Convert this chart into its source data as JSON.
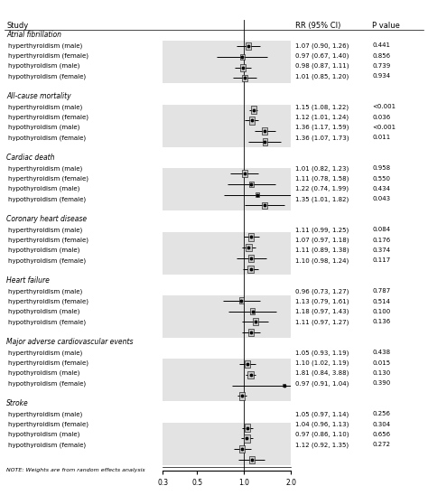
{
  "groups": [
    {
      "label": "Atrial fibrillation",
      "studies": [
        {
          "name": "hyperthyroidism (male)",
          "rr": 1.07,
          "lo": 0.9,
          "hi": 1.26,
          "rr_str": "1.07 (0.90, 1.26)",
          "p": "0.441"
        },
        {
          "name": "hyperthyroidism (female)",
          "rr": 0.97,
          "lo": 0.67,
          "hi": 1.4,
          "rr_str": "0.97 (0.67, 1.40)",
          "p": "0.856"
        },
        {
          "name": "hypothyroidism (male)",
          "rr": 0.98,
          "lo": 0.87,
          "hi": 1.11,
          "rr_str": "0.98 (0.87, 1.11)",
          "p": "0.739"
        },
        {
          "name": "hypothyroidism (female)",
          "rr": 1.01,
          "lo": 0.85,
          "hi": 1.2,
          "rr_str": "1.01 (0.85, 1.20)",
          "p": "0.934"
        }
      ]
    },
    {
      "label": "All-cause mortality",
      "studies": [
        {
          "name": "hyperthyroidism (male)",
          "rr": 1.15,
          "lo": 1.08,
          "hi": 1.22,
          "rr_str": "1.15 (1.08, 1.22)",
          "p": "<0.001"
        },
        {
          "name": "hyperthyroidism (female)",
          "rr": 1.12,
          "lo": 1.01,
          "hi": 1.24,
          "rr_str": "1.12 (1.01, 1.24)",
          "p": "0.036"
        },
        {
          "name": "hypothyroidism (male)",
          "rr": 1.36,
          "lo": 1.17,
          "hi": 1.59,
          "rr_str": "1.36 (1.17, 1.59)",
          "p": "<0.001"
        },
        {
          "name": "hypothyroidism (female)",
          "rr": 1.36,
          "lo": 1.07,
          "hi": 1.73,
          "rr_str": "1.36 (1.07, 1.73)",
          "p": "0.011"
        }
      ]
    },
    {
      "label": "Cardiac death",
      "studies": [
        {
          "name": "hyperthyroidism (male)",
          "rr": 1.01,
          "lo": 0.82,
          "hi": 1.23,
          "rr_str": "1.01 (0.82, 1.23)",
          "p": "0.958"
        },
        {
          "name": "hyperthyroidism (female)",
          "rr": 1.11,
          "lo": 0.78,
          "hi": 1.58,
          "rr_str": "1.11 (0.78, 1.58)",
          "p": "0.550"
        },
        {
          "name": "hypothyroidism (male)",
          "rr": 1.22,
          "lo": 0.74,
          "hi": 1.99,
          "rr_str": "1.22 (0.74, 1.99)",
          "p": "0.434"
        },
        {
          "name": "hypothyroidism (female)",
          "rr": 1.35,
          "lo": 1.01,
          "hi": 1.82,
          "rr_str": "1.35 (1.01, 1.82)",
          "p": "0.043"
        }
      ]
    },
    {
      "label": "Coronary heart disease",
      "studies": [
        {
          "name": "hyperthyroidism (male)",
          "rr": 1.11,
          "lo": 0.99,
          "hi": 1.25,
          "rr_str": "1.11 (0.99, 1.25)",
          "p": "0.084"
        },
        {
          "name": "hyperthyroidism (female)",
          "rr": 1.07,
          "lo": 0.97,
          "hi": 1.18,
          "rr_str": "1.07 (0.97, 1.18)",
          "p": "0.176"
        },
        {
          "name": "hypothyroidism (male)",
          "rr": 1.11,
          "lo": 0.89,
          "hi": 1.38,
          "rr_str": "1.11 (0.89, 1.38)",
          "p": "0.374"
        },
        {
          "name": "hypothyroidism (female)",
          "rr": 1.1,
          "lo": 0.98,
          "hi": 1.24,
          "rr_str": "1.10 (0.98, 1.24)",
          "p": "0.117"
        }
      ]
    },
    {
      "label": "Heart failure",
      "studies": [
        {
          "name": "hyperthyroidism (male)",
          "rr": 0.96,
          "lo": 0.73,
          "hi": 1.27,
          "rr_str": "0.96 (0.73, 1.27)",
          "p": "0.787"
        },
        {
          "name": "hyperthyroidism (female)",
          "rr": 1.13,
          "lo": 0.79,
          "hi": 1.61,
          "rr_str": "1.13 (0.79, 1.61)",
          "p": "0.514"
        },
        {
          "name": "hypothyroidism (male)",
          "rr": 1.18,
          "lo": 0.97,
          "hi": 1.43,
          "rr_str": "1.18 (0.97, 1.43)",
          "p": "0.100"
        },
        {
          "name": "hypothyroidism (female)",
          "rr": 1.11,
          "lo": 0.97,
          "hi": 1.27,
          "rr_str": "1.11 (0.97, 1.27)",
          "p": "0.136"
        }
      ]
    },
    {
      "label": "Major adverse cardiovascular events",
      "studies": [
        {
          "name": "hyperthyroidism (male)",
          "rr": 1.05,
          "lo": 0.93,
          "hi": 1.19,
          "rr_str": "1.05 (0.93, 1.19)",
          "p": "0.438"
        },
        {
          "name": "hyperthyroidism (female)",
          "rr": 1.1,
          "lo": 1.02,
          "hi": 1.19,
          "rr_str": "1.10 (1.02, 1.19)",
          "p": "0.015"
        },
        {
          "name": "hypothyroidism (male)",
          "rr": 1.81,
          "lo": 0.84,
          "hi": 3.88,
          "rr_str": "1.81 (0.84, 3.88)",
          "p": "0.130",
          "arrow": true
        },
        {
          "name": "hypothyroidism (female)",
          "rr": 0.97,
          "lo": 0.91,
          "hi": 1.04,
          "rr_str": "0.97 (0.91, 1.04)",
          "p": "0.390"
        }
      ]
    },
    {
      "label": "Stroke",
      "studies": [
        {
          "name": "hyperthyroidism (male)",
          "rr": 1.05,
          "lo": 0.97,
          "hi": 1.14,
          "rr_str": "1.05 (0.97, 1.14)",
          "p": "0.256"
        },
        {
          "name": "hyperthyroidism (female)",
          "rr": 1.04,
          "lo": 0.96,
          "hi": 1.13,
          "rr_str": "1.04 (0.96, 1.13)",
          "p": "0.304"
        },
        {
          "name": "hypothyroidism (male)",
          "rr": 0.97,
          "lo": 0.86,
          "hi": 1.1,
          "rr_str": "0.97 (0.86, 1.10)",
          "p": "0.656"
        },
        {
          "name": "hypothyroidism (female)",
          "rr": 1.12,
          "lo": 0.92,
          "hi": 1.35,
          "rr_str": "1.12 (0.92, 1.35)",
          "p": "0.272"
        }
      ]
    }
  ],
  "note": "NOTE: Weights are from random effects analysis",
  "log_ticks": [
    0.3,
    0.5,
    1.0,
    2.0
  ],
  "log_min": 0.3,
  "log_max": 2.0,
  "box_color": "#c8c8c8",
  "bg_color": "#ffffff",
  "text_color": "#000000"
}
